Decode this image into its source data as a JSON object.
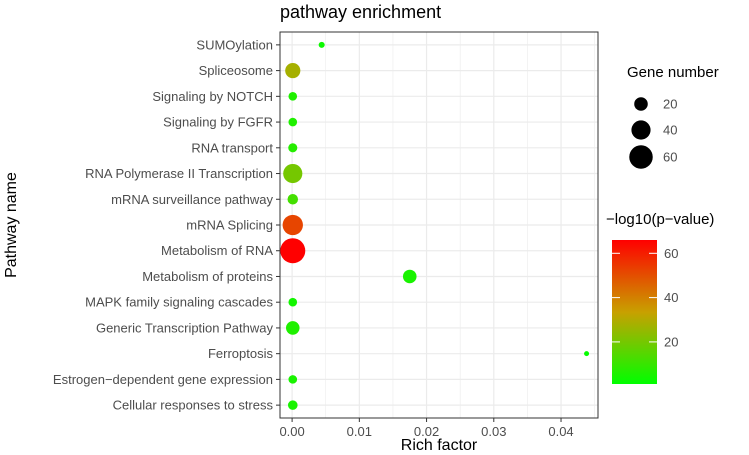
{
  "chart_data": {
    "type": "scatter",
    "title": "pathway enrichment",
    "xlabel": "Rich factor",
    "ylabel": "Pathway name",
    "xlim": [
      -0.0018,
      0.0455
    ],
    "x_ticks": [
      "0.00",
      "0.01",
      "0.02",
      "0.03",
      "0.04"
    ],
    "x_tick_values": [
      0,
      0.01,
      0.02,
      0.03,
      0.04
    ],
    "grid": true,
    "background": "#ffffff",
    "grid_color": "#ebebeb",
    "categories": [
      "SUMOylation",
      "Spliceosome",
      "Signaling by NOTCH",
      "Signaling by FGFR",
      "RNA transport",
      "RNA Polymerase II Transcription",
      "mRNA surveillance pathway",
      "mRNA Splicing",
      "Metabolism of RNA",
      "Metabolism of proteins",
      "MAPK family signaling cascades",
      "Generic Transcription Pathway",
      "Ferroptosis",
      "Estrogen−dependent gene expression",
      "Cellular responses to stress"
    ],
    "points": [
      {
        "pathway": "SUMOylation",
        "rich_factor": 0.0044,
        "gene_number": 4,
        "neg_log10_p": 3
      },
      {
        "pathway": "Spliceosome",
        "rich_factor": 0.0001,
        "gene_number": 25,
        "neg_log10_p": 28
      },
      {
        "pathway": "Signaling by NOTCH",
        "rich_factor": 0.0001,
        "gene_number": 8,
        "neg_log10_p": 6
      },
      {
        "pathway": "Signaling by FGFR",
        "rich_factor": 0.0001,
        "gene_number": 8,
        "neg_log10_p": 6
      },
      {
        "pathway": "RNA transport",
        "rich_factor": 0.0001,
        "gene_number": 9,
        "neg_log10_p": 7
      },
      {
        "pathway": "RNA Polymerase II Transcription",
        "rich_factor": 0.0001,
        "gene_number": 40,
        "neg_log10_p": 20
      },
      {
        "pathway": "mRNA surveillance pathway",
        "rich_factor": 0.0001,
        "gene_number": 12,
        "neg_log10_p": 12
      },
      {
        "pathway": "mRNA Splicing",
        "rich_factor": 0.0001,
        "gene_number": 45,
        "neg_log10_p": 52
      },
      {
        "pathway": "Metabolism of RNA",
        "rich_factor": 0.0001,
        "gene_number": 68,
        "neg_log10_p": 66
      },
      {
        "pathway": "Metabolism of proteins",
        "rich_factor": 0.0175,
        "gene_number": 20,
        "neg_log10_p": 5
      },
      {
        "pathway": "MAPK family signaling cascades",
        "rich_factor": 0.0001,
        "gene_number": 8,
        "neg_log10_p": 4
      },
      {
        "pathway": "Generic Transcription Pathway",
        "rich_factor": 0.0001,
        "gene_number": 20,
        "neg_log10_p": 6
      },
      {
        "pathway": "Ferroptosis",
        "rich_factor": 0.0438,
        "gene_number": 2,
        "neg_log10_p": 2
      },
      {
        "pathway": "Estrogen−dependent gene expression",
        "rich_factor": 0.0001,
        "gene_number": 8,
        "neg_log10_p": 5
      },
      {
        "pathway": "Cellular responses to stress",
        "rich_factor": 0.0001,
        "gene_number": 10,
        "neg_log10_p": 5
      }
    ],
    "size_legend": {
      "title": "Gene number",
      "values": [
        20,
        40,
        60
      ],
      "labels": [
        "20",
        "40",
        "60"
      ],
      "size_range": [
        0,
        68
      ]
    },
    "color_legend": {
      "title": "−log10(p−value)",
      "range": [
        1,
        66
      ],
      "ticks": [
        20,
        40,
        60
      ],
      "tick_labels": [
        "20",
        "40",
        "60"
      ],
      "low_color": "#00ff00",
      "mid_color": "#c8a000",
      "high_color": "#ff0000"
    }
  }
}
